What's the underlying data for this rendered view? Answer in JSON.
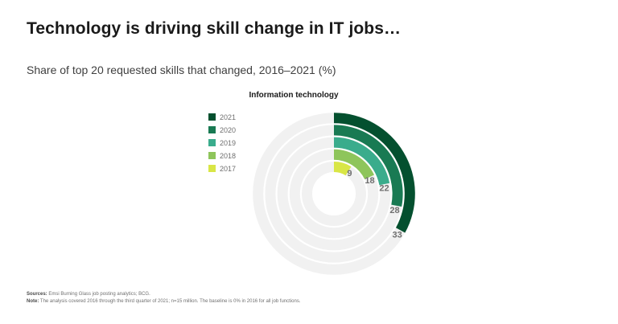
{
  "header": {
    "title": "Technology is driving skill change in IT jobs…",
    "subtitle": "Share of top 20 requested skills that changed, 2016–2021 (%)"
  },
  "chart_data": {
    "type": "radial-bar",
    "title": "Information technology",
    "max_value": 100,
    "series": [
      {
        "name": "2017",
        "value": 9,
        "label": "9",
        "color": "#d9e646"
      },
      {
        "name": "2018",
        "value": 18,
        "label": "18",
        "color": "#8ec55b"
      },
      {
        "name": "2019",
        "value": 22,
        "label": "22",
        "color": "#3aac8c"
      },
      {
        "name": "2020",
        "value": 28,
        "label": "28",
        "color": "#197a53"
      },
      {
        "name": "2021",
        "value": 33,
        "label": "33",
        "color": "#04502f"
      }
    ],
    "legend": {
      "placement": "left",
      "order": [
        "2021",
        "2020",
        "2019",
        "2018",
        "2017"
      ]
    },
    "track_color": "#f1f1f1"
  },
  "footer": {
    "sources_label": "Sources:",
    "sources_text": " Emsi Burning Glass job posting analytics; BCG.",
    "note_label": "Note:",
    "note_text": " The analysis covered 2016 through the third quarter of 2021; n=15 million. The baseline is 0% in 2016 for all job functions."
  }
}
